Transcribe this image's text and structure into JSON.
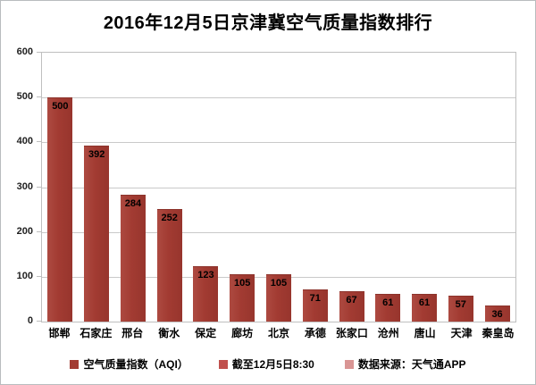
{
  "chart_data": {
    "type": "bar",
    "title": "2016年12月5日京津冀空气质量指数排行",
    "categories": [
      "邯郸",
      "石家庄",
      "邢台",
      "衡水",
      "保定",
      "廊坊",
      "北京",
      "承德",
      "张家口",
      "沧州",
      "唐山",
      "天津",
      "秦皇岛"
    ],
    "values": [
      500,
      392,
      284,
      252,
      123,
      105,
      105,
      71,
      67,
      61,
      61,
      57,
      36
    ],
    "xlabel": "",
    "ylabel": "",
    "ylim": [
      0,
      600
    ],
    "ytick_step": 100,
    "grid": true,
    "bar_color": "#a23b32",
    "value_label_color": "#000000",
    "legend_position": "bottom",
    "legend": [
      {
        "label": "空气质量指数（AQI）",
        "color": "#a23b32"
      },
      {
        "label": "截至12月5日8:30",
        "color": "#c0504d"
      },
      {
        "label": "数据来源：天气通APP",
        "color": "#d99594"
      }
    ]
  }
}
